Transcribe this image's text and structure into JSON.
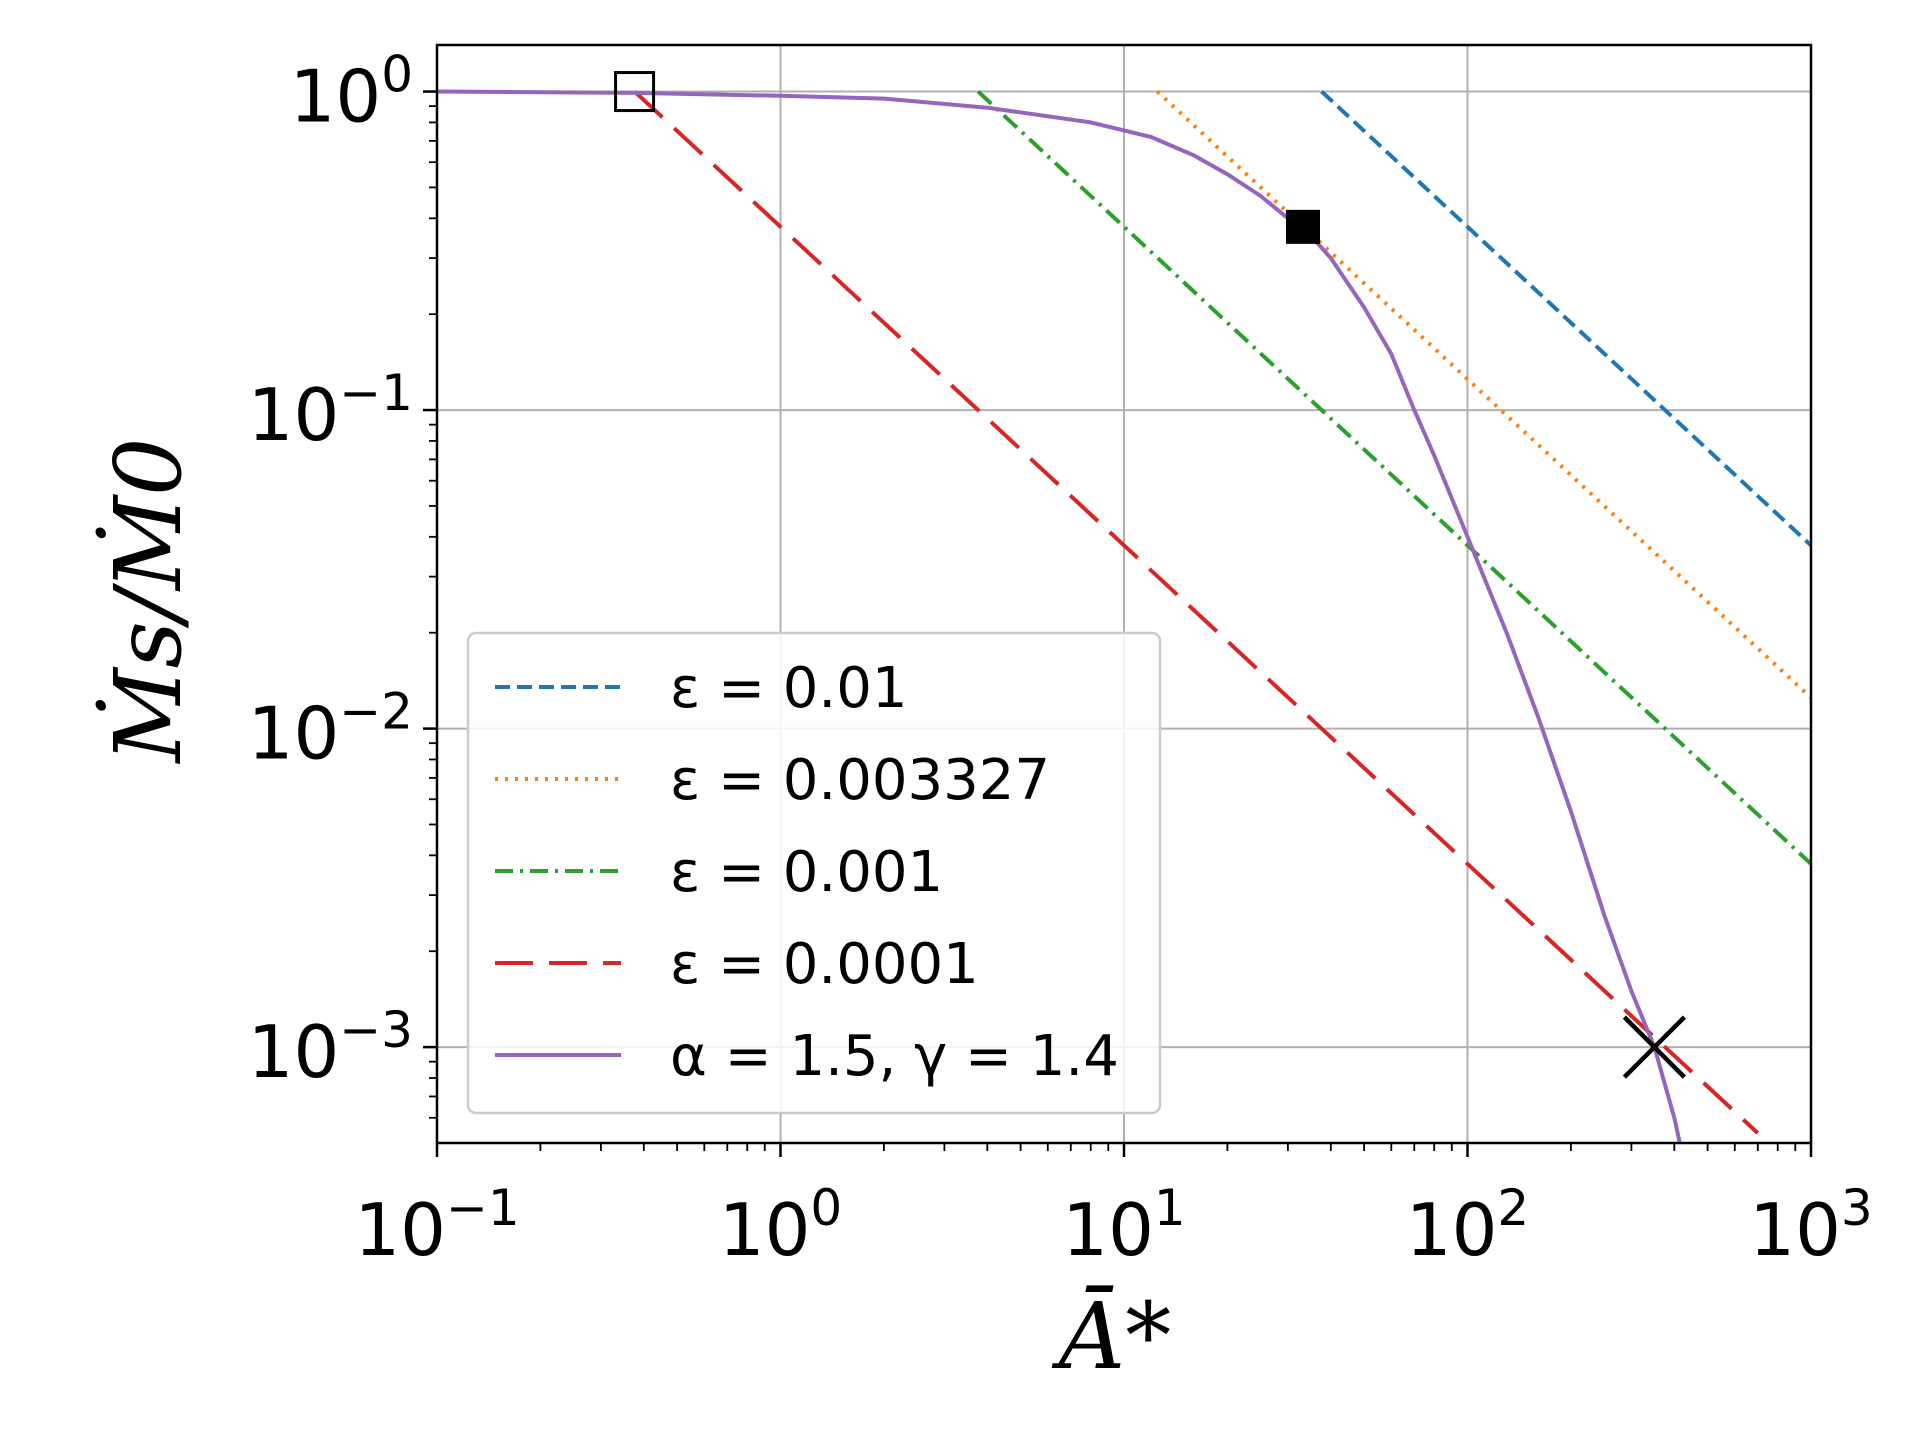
{
  "chart_data": {
    "type": "line",
    "xscale": "log",
    "yscale": "log",
    "xlim": [
      0.1,
      1000
    ],
    "ylim": [
      0.0005,
      1.4
    ],
    "grid": true,
    "xlabel": "Ā*",
    "ylabel": "Ṁs/Ṁ0",
    "x_ticks": [
      {
        "value": 0.1,
        "base": "10",
        "exp": "−1"
      },
      {
        "value": 1,
        "base": "10",
        "exp": "0"
      },
      {
        "value": 10,
        "base": "10",
        "exp": "1"
      },
      {
        "value": 100,
        "base": "10",
        "exp": "2"
      },
      {
        "value": 1000,
        "base": "10",
        "exp": "3"
      }
    ],
    "y_ticks": [
      {
        "value": 1,
        "base": "10",
        "exp": "0"
      },
      {
        "value": 0.1,
        "base": "10",
        "exp": "−1"
      },
      {
        "value": 0.01,
        "base": "10",
        "exp": "−2"
      },
      {
        "value": 0.001,
        "base": "10",
        "exp": "−3"
      }
    ],
    "legend_position": "lower-left",
    "series": [
      {
        "label": "ε = 0.01",
        "color": "#1f77b4",
        "style": "dashed",
        "x": [
          37.6,
          1000
        ],
        "y": [
          1.0,
          0.0376
        ]
      },
      {
        "label": "ε = 0.003327",
        "color": "#ff7f0e",
        "style": "dotted",
        "x": [
          12.5,
          1000
        ],
        "y": [
          1.0,
          0.0125
        ]
      },
      {
        "label": "ε = 0.001",
        "color": "#2ca02c",
        "style": "dashdot",
        "x": [
          3.76,
          1000
        ],
        "y": [
          1.0,
          0.00376
        ]
      },
      {
        "label": "ε = 0.0001",
        "color": "#d62728",
        "style": "longdash",
        "x": [
          0.376,
          700
        ],
        "y": [
          1.0,
          0.000537
        ]
      },
      {
        "label": "α = 1.5, γ = 1.4",
        "color": "#9467bd",
        "style": "solid",
        "x": [
          0.1,
          0.376,
          1,
          2,
          4,
          8,
          12,
          16,
          20,
          25,
          30,
          33.2,
          40,
          50,
          60,
          70,
          80,
          100,
          130,
          160,
          200,
          250,
          300,
          350,
          400,
          415
        ],
        "y": [
          1.0,
          0.99,
          0.97,
          0.95,
          0.89,
          0.8,
          0.72,
          0.63,
          0.55,
          0.47,
          0.4,
          0.376,
          0.3,
          0.21,
          0.15,
          0.1,
          0.072,
          0.04,
          0.02,
          0.011,
          0.0055,
          0.0026,
          0.0015,
          0.001,
          0.0006,
          0.0005
        ]
      }
    ],
    "markers": [
      {
        "shape": "open-square",
        "x": 0.376,
        "y": 1.0
      },
      {
        "shape": "filled-square",
        "x": 33.2,
        "y": 0.376
      },
      {
        "shape": "x",
        "x": 350,
        "y": 0.001
      }
    ]
  }
}
